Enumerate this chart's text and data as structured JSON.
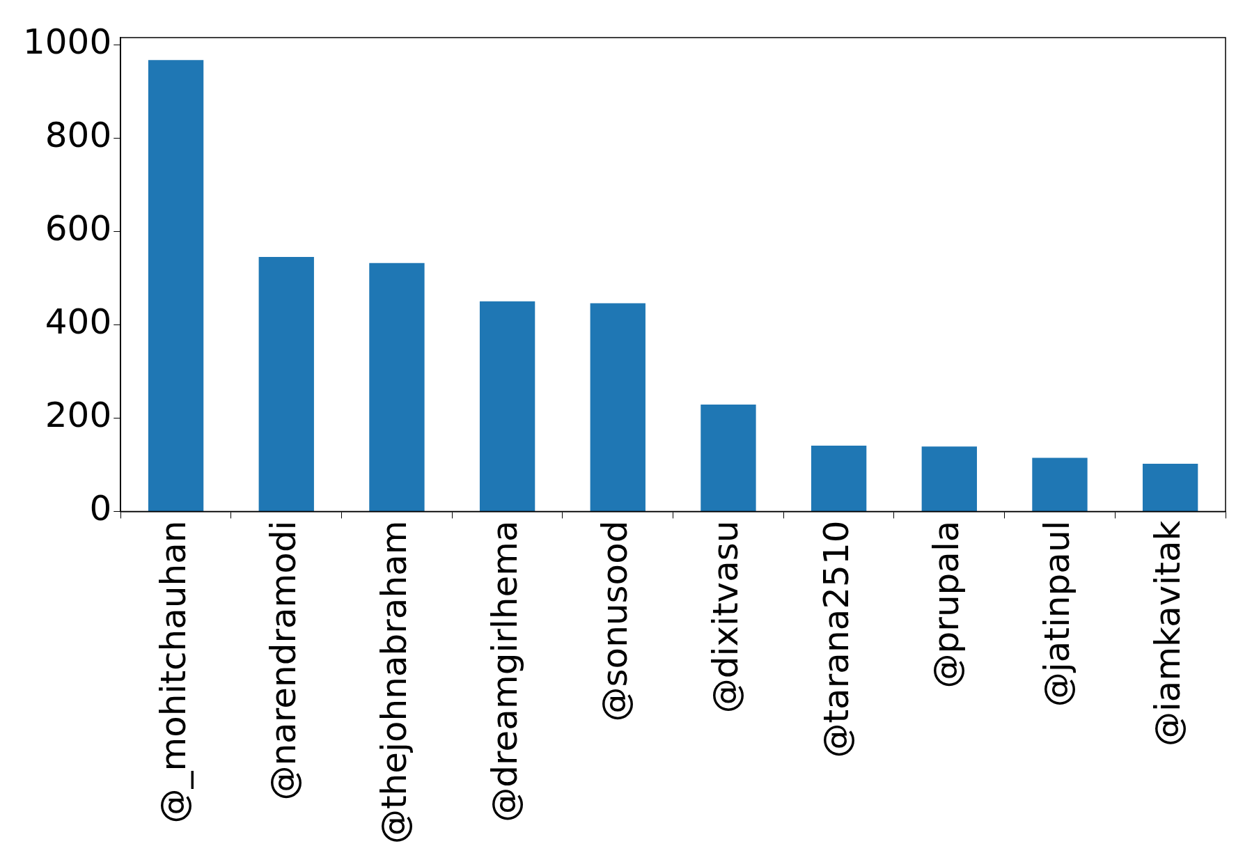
{
  "chart_data": {
    "type": "bar",
    "categories": [
      "@_mohitchauhan",
      "@narendramodi",
      "@thejohnabraham",
      "@dreamgirlhema",
      "@sonusood",
      "@dixitvasu",
      "@tarana2510",
      "@prupala",
      "@jatinpaul",
      "@iamkavitak"
    ],
    "values": [
      967,
      545,
      532,
      450,
      446,
      229,
      141,
      139,
      115,
      102
    ],
    "color": "#1f77b4",
    "ylim": [
      0,
      1015
    ],
    "yticks": [
      0,
      200,
      400,
      600,
      800,
      1000
    ],
    "grid": false,
    "legend": false
  }
}
